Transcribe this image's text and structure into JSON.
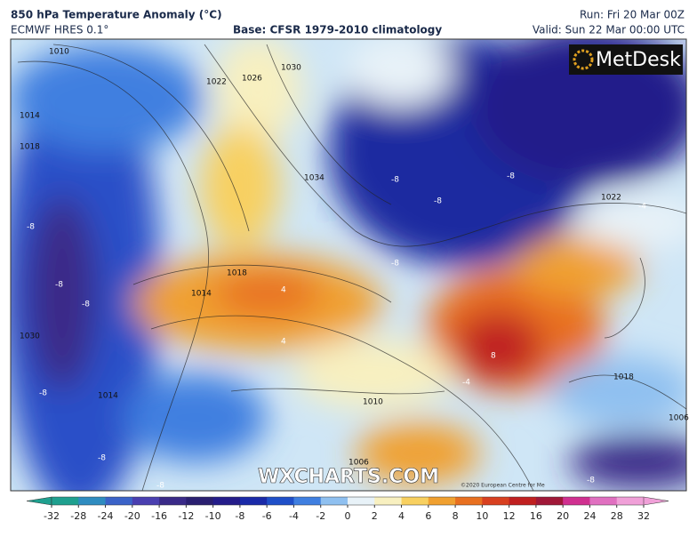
{
  "header": {
    "title": "850 hPa Temperature Anomaly (°C)",
    "model": "ECMWF HRES 0.1°",
    "base": "Base: CFSR 1979-2010 climatology",
    "run": "Run: Fri 20 Mar 00Z",
    "valid": "Valid: Sun 22 Mar 00:00 UTC"
  },
  "logo": "MetDesk",
  "watermark": "WXCHARTS.COM",
  "copyright": "©2020 European Centre for Me",
  "isobar_labels": [
    "1010",
    "1022",
    "1026",
    "1030",
    "1014",
    "1018",
    "1034",
    "1022",
    "1014",
    "1018",
    "1014",
    "1030",
    "1010",
    "1006",
    "1018",
    "1006"
  ],
  "anomaly_labels": [
    "-8",
    "-8",
    "-8",
    "-8",
    "-8",
    "-8",
    "-8",
    "-4",
    "4",
    "4",
    "8",
    "-8",
    "-8",
    "-8",
    "-8",
    "-4"
  ],
  "colorbar": {
    "ticks": [
      -32,
      -28,
      -24,
      -20,
      -16,
      -12,
      -10,
      -8,
      -6,
      -4,
      -2,
      0,
      2,
      4,
      6,
      8,
      10,
      12,
      16,
      20,
      24,
      28,
      32
    ],
    "colors": [
      "#1fa08f",
      "#2f8cc0",
      "#3b63c8",
      "#4a3fb0",
      "#3a2a88",
      "#2a1f70",
      "#241c8a",
      "#1a2aa8",
      "#1f4fc8",
      "#3f7fe0",
      "#8fc0f0",
      "#e8f2f8",
      "#f8f0c0",
      "#f8d060",
      "#f0a030",
      "#e87020",
      "#d84020",
      "#c02020",
      "#a01838",
      "#d03090",
      "#e070c0",
      "#f0a0d8"
    ]
  }
}
